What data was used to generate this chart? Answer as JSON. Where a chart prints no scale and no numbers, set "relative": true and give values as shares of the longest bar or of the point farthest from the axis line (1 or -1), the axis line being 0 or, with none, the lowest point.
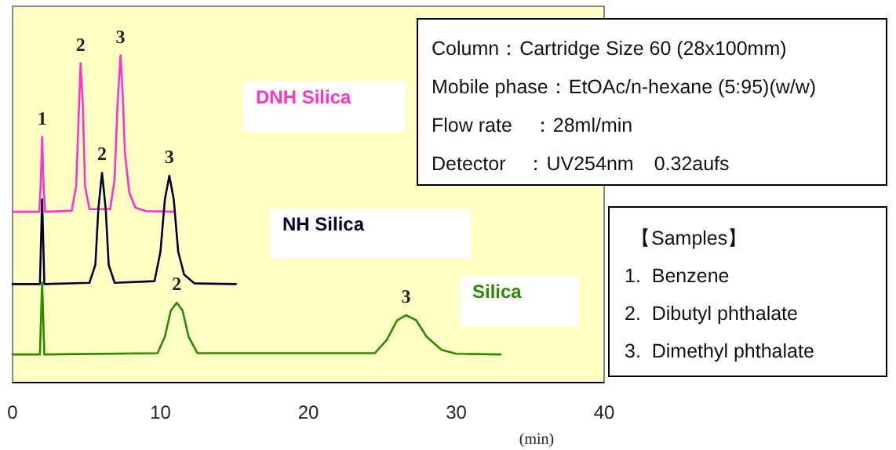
{
  "chart_data": {
    "type": "line",
    "relative": true,
    "xlabel": "(min)",
    "xlim": [
      0,
      40
    ],
    "xticks": [
      0,
      10,
      20,
      30,
      40
    ],
    "tick_labels": "x",
    "grid": false,
    "marker": "none",
    "line_style": "solid",
    "series": [
      {
        "name": "DNH Silica",
        "color": "#ff33cc",
        "x": [
          0,
          1.8,
          1.9,
          2.0,
          2.1,
          2.2,
          4.0,
          4.3,
          4.5,
          4.6,
          4.75,
          4.9,
          5.2,
          6.6,
          6.9,
          7.1,
          7.3,
          7.45,
          7.6,
          7.9,
          8.3,
          9,
          10.9
        ],
        "values": [
          0.522,
          0.522,
          0.6,
          0.751,
          0.6,
          0.522,
          0.525,
          0.6,
          0.85,
          0.976,
          0.85,
          0.6,
          0.53,
          0.53,
          0.62,
          0.85,
          1.0,
          0.88,
          0.7,
          0.58,
          0.535,
          0.524,
          0.522
        ]
      },
      {
        "name": "NH Silica",
        "color": "#000033",
        "x": [
          0,
          1.85,
          2.0,
          2.15,
          5.2,
          5.6,
          5.8,
          6.05,
          6.3,
          6.5,
          6.9,
          9.6,
          10.0,
          10.3,
          10.6,
          10.9,
          11.2,
          11.6,
          12.3,
          15.1
        ],
        "values": [
          0.301,
          0.301,
          0.56,
          0.301,
          0.305,
          0.36,
          0.53,
          0.641,
          0.53,
          0.36,
          0.305,
          0.31,
          0.4,
          0.56,
          0.632,
          0.56,
          0.4,
          0.33,
          0.303,
          0.301
        ]
      },
      {
        "name": "Silica",
        "color": "#2a8a00",
        "x": [
          0,
          1.85,
          2.0,
          2.15,
          9.8,
          10.3,
          10.7,
          11.1,
          11.5,
          11.9,
          12.5,
          24.5,
          25.3,
          26.0,
          26.6,
          27.3,
          28,
          29,
          30,
          33
        ],
        "values": [
          0.086,
          0.086,
          0.306,
          0.086,
          0.09,
          0.14,
          0.22,
          0.244,
          0.22,
          0.14,
          0.09,
          0.09,
          0.13,
          0.19,
          0.206,
          0.19,
          0.14,
          0.1,
          0.088,
          0.086
        ]
      }
    ],
    "annotations": [
      {
        "text": "1",
        "x": 2.0,
        "y": 0.751
      },
      {
        "text": "2",
        "x": 4.6,
        "y": 0.976
      },
      {
        "text": "3",
        "x": 7.3,
        "y": 1.0
      },
      {
        "text": "2",
        "x": 6.05,
        "y": 0.641
      },
      {
        "text": "3",
        "x": 10.6,
        "y": 0.632
      },
      {
        "text": "2",
        "x": 11.1,
        "y": 0.244
      },
      {
        "text": "3",
        "x": 26.6,
        "y": 0.206
      },
      "Column：Cartridge Size 60 (28x100mm)",
      "Mobile phase：EtOAc/n-hexane (5:95)(w/w)",
      "Flow rate　：28ml/min",
      "Detector　：UV254nm　0.32aufs",
      "【Samples】",
      "1.  Benzene",
      "2.  Dibutyl phthalate",
      "3.  Dimethyl phthalate"
    ]
  }
}
